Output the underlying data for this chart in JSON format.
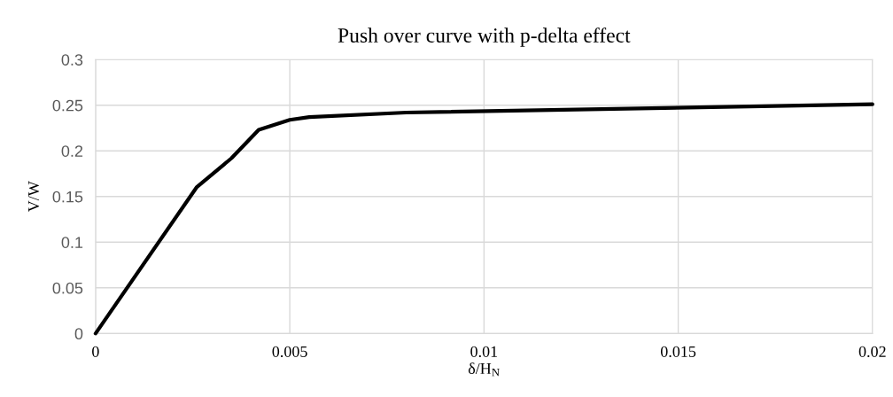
{
  "chart_data": {
    "type": "line",
    "title": "Push over curve with p-delta effect",
    "xlabel": "δ/H$_{N}$",
    "ylabel": "V/W",
    "series": [
      {
        "color": "#000000",
        "x": [
          0,
          0.0026,
          0.0035,
          0.0042,
          0.005,
          0.0055,
          0.008,
          0.02
        ],
        "values": [
          0,
          0.16,
          0.192,
          0.223,
          0.234,
          0.237,
          0.242,
          0.251
        ]
      }
    ],
    "xlim": [
      0,
      0.02
    ],
    "xticks": [
      0,
      0.005,
      0.01,
      0.015,
      0.02
    ],
    "ylim": [
      0,
      0.3
    ],
    "yticks": [
      0,
      0.05,
      0.1,
      0.15,
      0.2,
      0.25,
      0.3
    ],
    "grid": true,
    "marker": "none",
    "line_style": "solid"
  }
}
